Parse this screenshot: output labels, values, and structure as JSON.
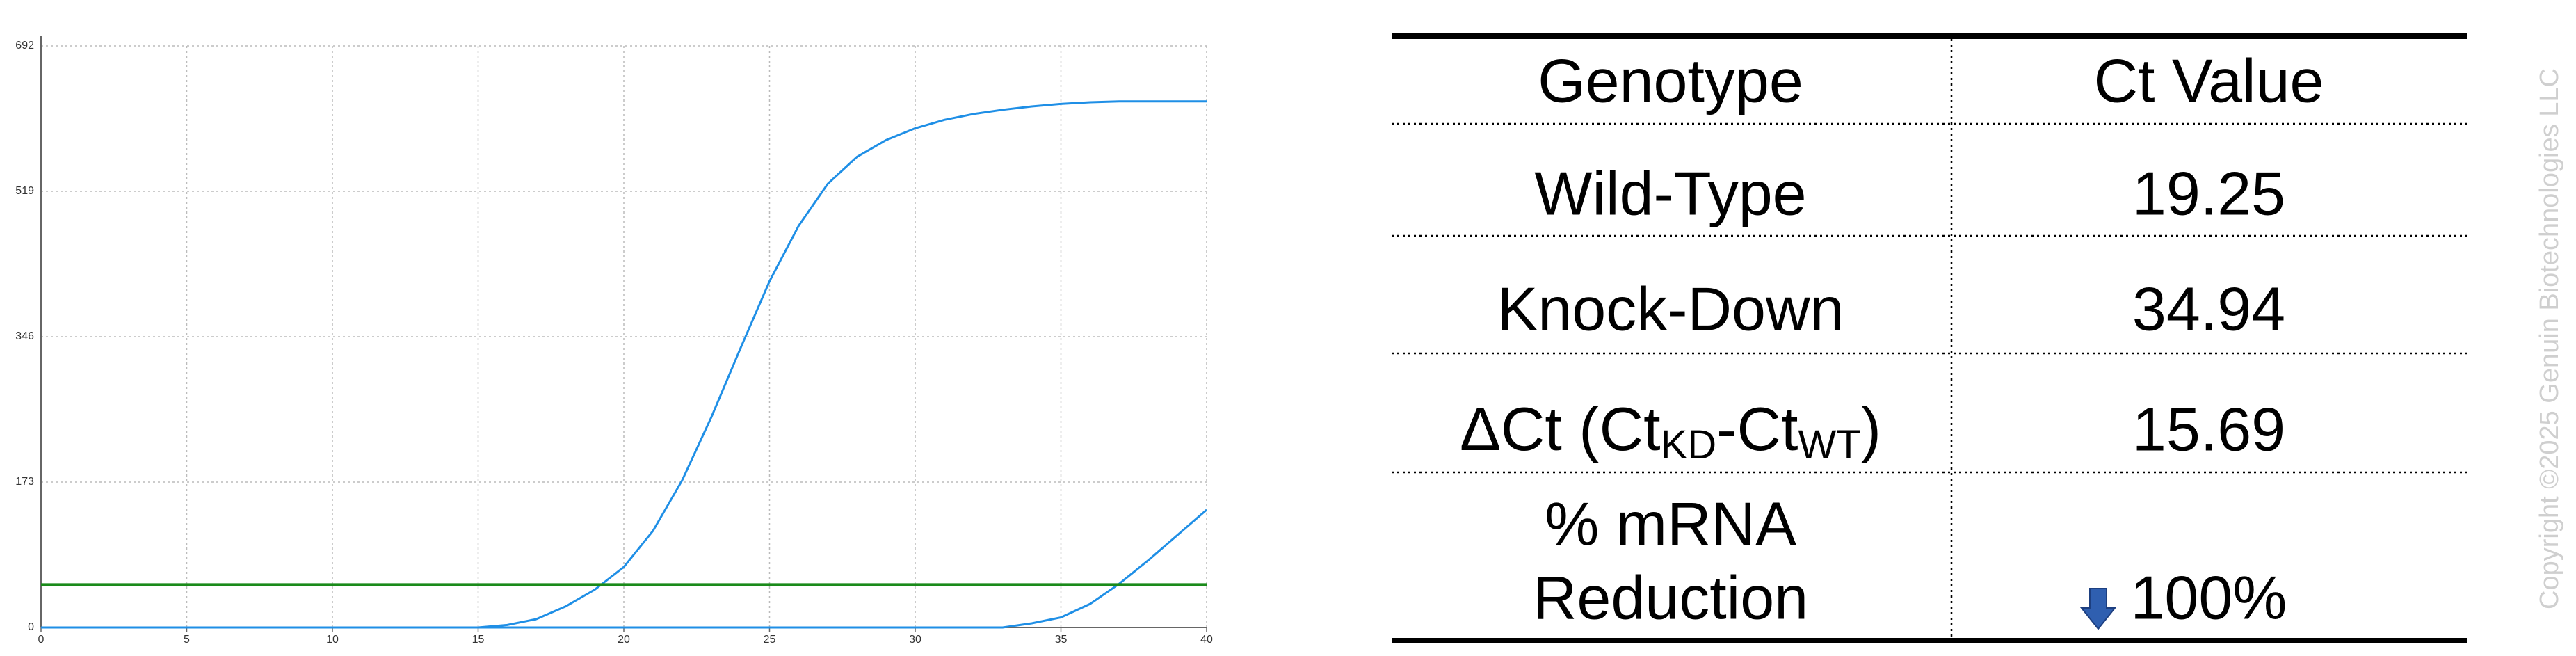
{
  "chart_data": {
    "type": "line",
    "x": [
      0,
      1,
      2,
      3,
      4,
      5,
      6,
      7,
      8,
      9,
      10,
      11,
      12,
      13,
      14,
      15,
      16,
      17,
      18,
      19,
      20,
      21,
      22,
      23,
      24,
      25,
      26,
      27,
      28,
      29,
      30,
      31,
      32,
      33,
      34,
      35,
      36,
      37,
      38,
      39,
      40
    ],
    "series": [
      {
        "color": "#1f8fe6",
        "values": [
          0,
          0,
          0,
          0,
          0,
          0,
          0,
          0,
          0,
          0,
          0,
          0,
          0,
          0,
          0,
          0,
          3,
          10,
          25,
          45,
          72,
          115,
          175,
          250,
          332,
          412,
          478,
          528,
          560,
          580,
          594,
          604,
          611,
          616,
          620,
          623,
          625,
          626,
          626,
          626,
          626
        ]
      },
      {
        "color": "#1f8fe6",
        "values": [
          0,
          0,
          0,
          0,
          0,
          0,
          0,
          0,
          0,
          0,
          0,
          0,
          0,
          0,
          0,
          0,
          0,
          0,
          0,
          0,
          0,
          0,
          0,
          0,
          0,
          0,
          0,
          0,
          0,
          0,
          0,
          0,
          0,
          0,
          5,
          12,
          28,
          52,
          80,
          110,
          140
        ]
      }
    ],
    "threshold": {
      "value": 51,
      "color": "#1a8a1a"
    },
    "xlim": [
      0,
      40
    ],
    "xticks": [
      0,
      5,
      10,
      15,
      20,
      25,
      30,
      35,
      40
    ],
    "ylim": [
      0,
      692
    ],
    "yticks": [
      0,
      173,
      346,
      519,
      692
    ],
    "grid": true
  },
  "table": {
    "header": [
      "Genotype",
      "Ct Value"
    ],
    "rows": [
      [
        "Wild-Type",
        "19.25"
      ],
      [
        "Knock-Down",
        "34.94"
      ],
      [
        [
          "ΔCt (Ct",
          "KD",
          "-Ct",
          "WT",
          ")"
        ],
        "15.69"
      ],
      [
        [
          "% mRNA",
          "Reduction"
        ],
        "100%"
      ]
    ]
  },
  "watermark": "Copyright ©2025 Genuin Biotechnologies LLC"
}
